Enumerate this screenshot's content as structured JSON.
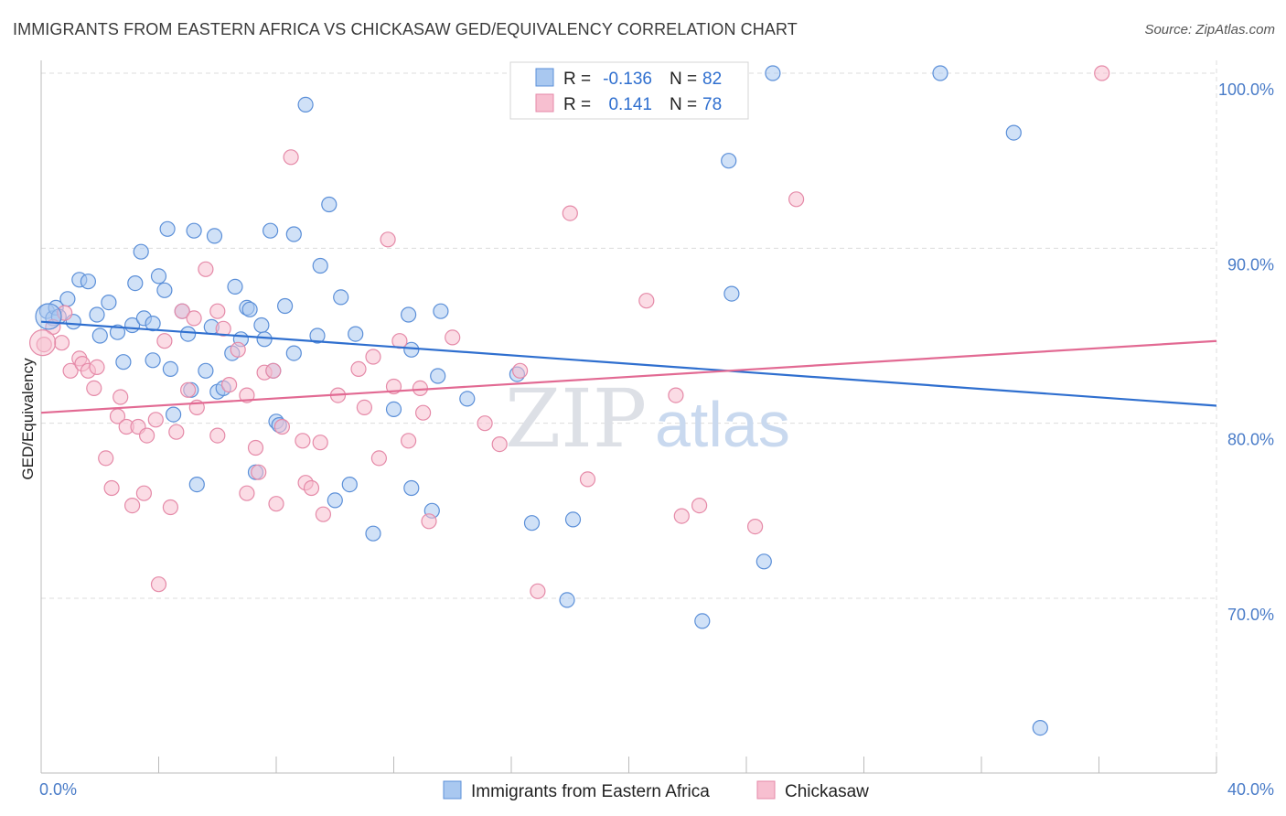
{
  "title": "IMMIGRANTS FROM EASTERN AFRICA VS CHICKASAW GED/EQUIVALENCY CORRELATION CHART",
  "source": "Source: ZipAtlas.com",
  "watermark": {
    "part1": "ZIP",
    "part2": "atlas"
  },
  "colors": {
    "blue_fill": "#a9c8f0",
    "blue_stroke": "#5b8fd8",
    "blue_line": "#2f6fcf",
    "pink_fill": "#f7bfd0",
    "pink_stroke": "#e58aa8",
    "pink_line": "#e26a93",
    "grid": "#dcdcdc",
    "tick_text": "#4a7cc8"
  },
  "legend": {
    "r_label": "R =",
    "n_label": "N =",
    "rows": [
      {
        "r": "-0.136",
        "n": "82"
      },
      {
        "r": "0.141",
        "n": "78"
      }
    ]
  },
  "chart_data": {
    "type": "scatter",
    "xlabel": "",
    "ylabel": "GED/Equivalency",
    "xlim": [
      0.0,
      40.0
    ],
    "ylim": [
      60.0,
      101.0
    ],
    "x_tick_labels": [
      "0.0%",
      "40.0%"
    ],
    "y_ticks": [
      70.0,
      80.0,
      90.0,
      100.0
    ],
    "y_tick_labels": [
      "70.0%",
      "80.0%",
      "90.0%",
      "100.0%"
    ],
    "grid": "horizontal dashed",
    "legend_position": "top-center",
    "series": [
      {
        "name": "Immigrants from Eastern Africa",
        "color": "blue",
        "trend": {
          "x": [
            0.0,
            40.0
          ],
          "y": [
            85.8,
            81.0
          ]
        },
        "points": [
          [
            0.2,
            86.4
          ],
          [
            0.4,
            86.0
          ],
          [
            0.5,
            86.6
          ],
          [
            0.6,
            86.1
          ],
          [
            0.9,
            87.1
          ],
          [
            1.1,
            85.8
          ],
          [
            1.3,
            88.2
          ],
          [
            1.6,
            88.1
          ],
          [
            1.9,
            86.2
          ],
          [
            2.0,
            85.0
          ],
          [
            2.3,
            86.9
          ],
          [
            2.6,
            85.2
          ],
          [
            2.8,
            83.5
          ],
          [
            3.1,
            85.6
          ],
          [
            3.2,
            88.0
          ],
          [
            3.4,
            89.8
          ],
          [
            3.5,
            86.0
          ],
          [
            3.8,
            85.7
          ],
          [
            3.8,
            83.6
          ],
          [
            4.0,
            88.4
          ],
          [
            4.2,
            87.6
          ],
          [
            4.3,
            91.1
          ],
          [
            4.4,
            83.1
          ],
          [
            4.5,
            80.5
          ],
          [
            4.8,
            86.4
          ],
          [
            5.0,
            85.1
          ],
          [
            5.1,
            81.9
          ],
          [
            5.2,
            91.0
          ],
          [
            5.3,
            76.5
          ],
          [
            5.6,
            83.0
          ],
          [
            5.8,
            85.5
          ],
          [
            5.9,
            90.7
          ],
          [
            6.0,
            81.8
          ],
          [
            6.2,
            82.0
          ],
          [
            6.5,
            84.0
          ],
          [
            6.6,
            87.8
          ],
          [
            6.8,
            84.8
          ],
          [
            7.0,
            86.6
          ],
          [
            7.1,
            86.5
          ],
          [
            7.3,
            77.2
          ],
          [
            7.5,
            85.6
          ],
          [
            7.6,
            84.8
          ],
          [
            7.8,
            91.0
          ],
          [
            7.9,
            83.0
          ],
          [
            8.0,
            80.1
          ],
          [
            8.1,
            79.9
          ],
          [
            8.3,
            86.7
          ],
          [
            8.6,
            84.0
          ],
          [
            8.6,
            90.8
          ],
          [
            9.0,
            98.2
          ],
          [
            9.4,
            85.0
          ],
          [
            9.5,
            89.0
          ],
          [
            9.8,
            92.5
          ],
          [
            10.0,
            75.6
          ],
          [
            10.2,
            87.2
          ],
          [
            10.5,
            76.5
          ],
          [
            10.7,
            85.1
          ],
          [
            11.3,
            73.7
          ],
          [
            12.0,
            80.8
          ],
          [
            12.5,
            86.2
          ],
          [
            12.6,
            84.2
          ],
          [
            12.6,
            76.3
          ],
          [
            13.3,
            75.0
          ],
          [
            13.5,
            82.7
          ],
          [
            13.6,
            86.4
          ],
          [
            14.5,
            81.4
          ],
          [
            16.2,
            82.8
          ],
          [
            16.7,
            74.3
          ],
          [
            17.0,
            100.0
          ],
          [
            17.9,
            69.9
          ],
          [
            18.1,
            74.5
          ],
          [
            22.5,
            68.7
          ],
          [
            23.4,
            95.0
          ],
          [
            23.5,
            87.4
          ],
          [
            24.6,
            72.1
          ],
          [
            24.9,
            100.0
          ],
          [
            30.6,
            100.0
          ],
          [
            33.1,
            96.6
          ],
          [
            34.0,
            62.6
          ]
        ]
      },
      {
        "name": "Chickasaw",
        "color": "pink",
        "trend": {
          "x": [
            0.0,
            40.0
          ],
          "y": [
            80.6,
            84.7
          ]
        },
        "points": [
          [
            0.1,
            84.5
          ],
          [
            0.4,
            85.5
          ],
          [
            0.7,
            84.6
          ],
          [
            0.8,
            86.3
          ],
          [
            1.0,
            83.0
          ],
          [
            1.3,
            83.7
          ],
          [
            1.4,
            83.4
          ],
          [
            1.6,
            83.0
          ],
          [
            1.8,
            82.0
          ],
          [
            1.9,
            83.2
          ],
          [
            2.2,
            78.0
          ],
          [
            2.4,
            76.3
          ],
          [
            2.6,
            80.4
          ],
          [
            2.7,
            81.5
          ],
          [
            2.9,
            79.8
          ],
          [
            3.1,
            75.3
          ],
          [
            3.3,
            79.8
          ],
          [
            3.5,
            76.0
          ],
          [
            3.6,
            79.3
          ],
          [
            3.9,
            80.2
          ],
          [
            4.0,
            70.8
          ],
          [
            4.2,
            84.7
          ],
          [
            4.4,
            75.2
          ],
          [
            4.6,
            79.5
          ],
          [
            4.8,
            86.4
          ],
          [
            5.0,
            81.9
          ],
          [
            5.2,
            86.0
          ],
          [
            5.3,
            80.9
          ],
          [
            5.6,
            88.8
          ],
          [
            6.0,
            86.4
          ],
          [
            6.0,
            79.3
          ],
          [
            6.2,
            85.4
          ],
          [
            6.4,
            82.2
          ],
          [
            6.7,
            84.2
          ],
          [
            7.0,
            76.0
          ],
          [
            7.0,
            81.6
          ],
          [
            7.3,
            78.6
          ],
          [
            7.4,
            77.2
          ],
          [
            7.6,
            82.9
          ],
          [
            7.9,
            83.0
          ],
          [
            8.0,
            75.4
          ],
          [
            8.2,
            79.8
          ],
          [
            8.5,
            95.2
          ],
          [
            8.9,
            79.0
          ],
          [
            9.0,
            76.6
          ],
          [
            9.2,
            76.3
          ],
          [
            9.5,
            78.9
          ],
          [
            9.6,
            74.8
          ],
          [
            10.1,
            81.6
          ],
          [
            10.8,
            83.1
          ],
          [
            11.0,
            80.9
          ],
          [
            11.3,
            83.8
          ],
          [
            11.5,
            78.0
          ],
          [
            11.8,
            90.5
          ],
          [
            12.0,
            82.1
          ],
          [
            12.2,
            84.7
          ],
          [
            12.5,
            79.0
          ],
          [
            12.9,
            82.0
          ],
          [
            13.0,
            80.6
          ],
          [
            13.2,
            74.4
          ],
          [
            14.0,
            84.9
          ],
          [
            15.1,
            80.0
          ],
          [
            15.6,
            78.8
          ],
          [
            16.3,
            83.0
          ],
          [
            16.9,
            70.4
          ],
          [
            18.0,
            92.0
          ],
          [
            18.6,
            76.8
          ],
          [
            20.6,
            87.0
          ],
          [
            21.6,
            81.6
          ],
          [
            21.8,
            74.7
          ],
          [
            22.4,
            75.3
          ],
          [
            24.3,
            74.1
          ],
          [
            25.7,
            92.8
          ],
          [
            36.1,
            100.0
          ]
        ]
      }
    ]
  }
}
